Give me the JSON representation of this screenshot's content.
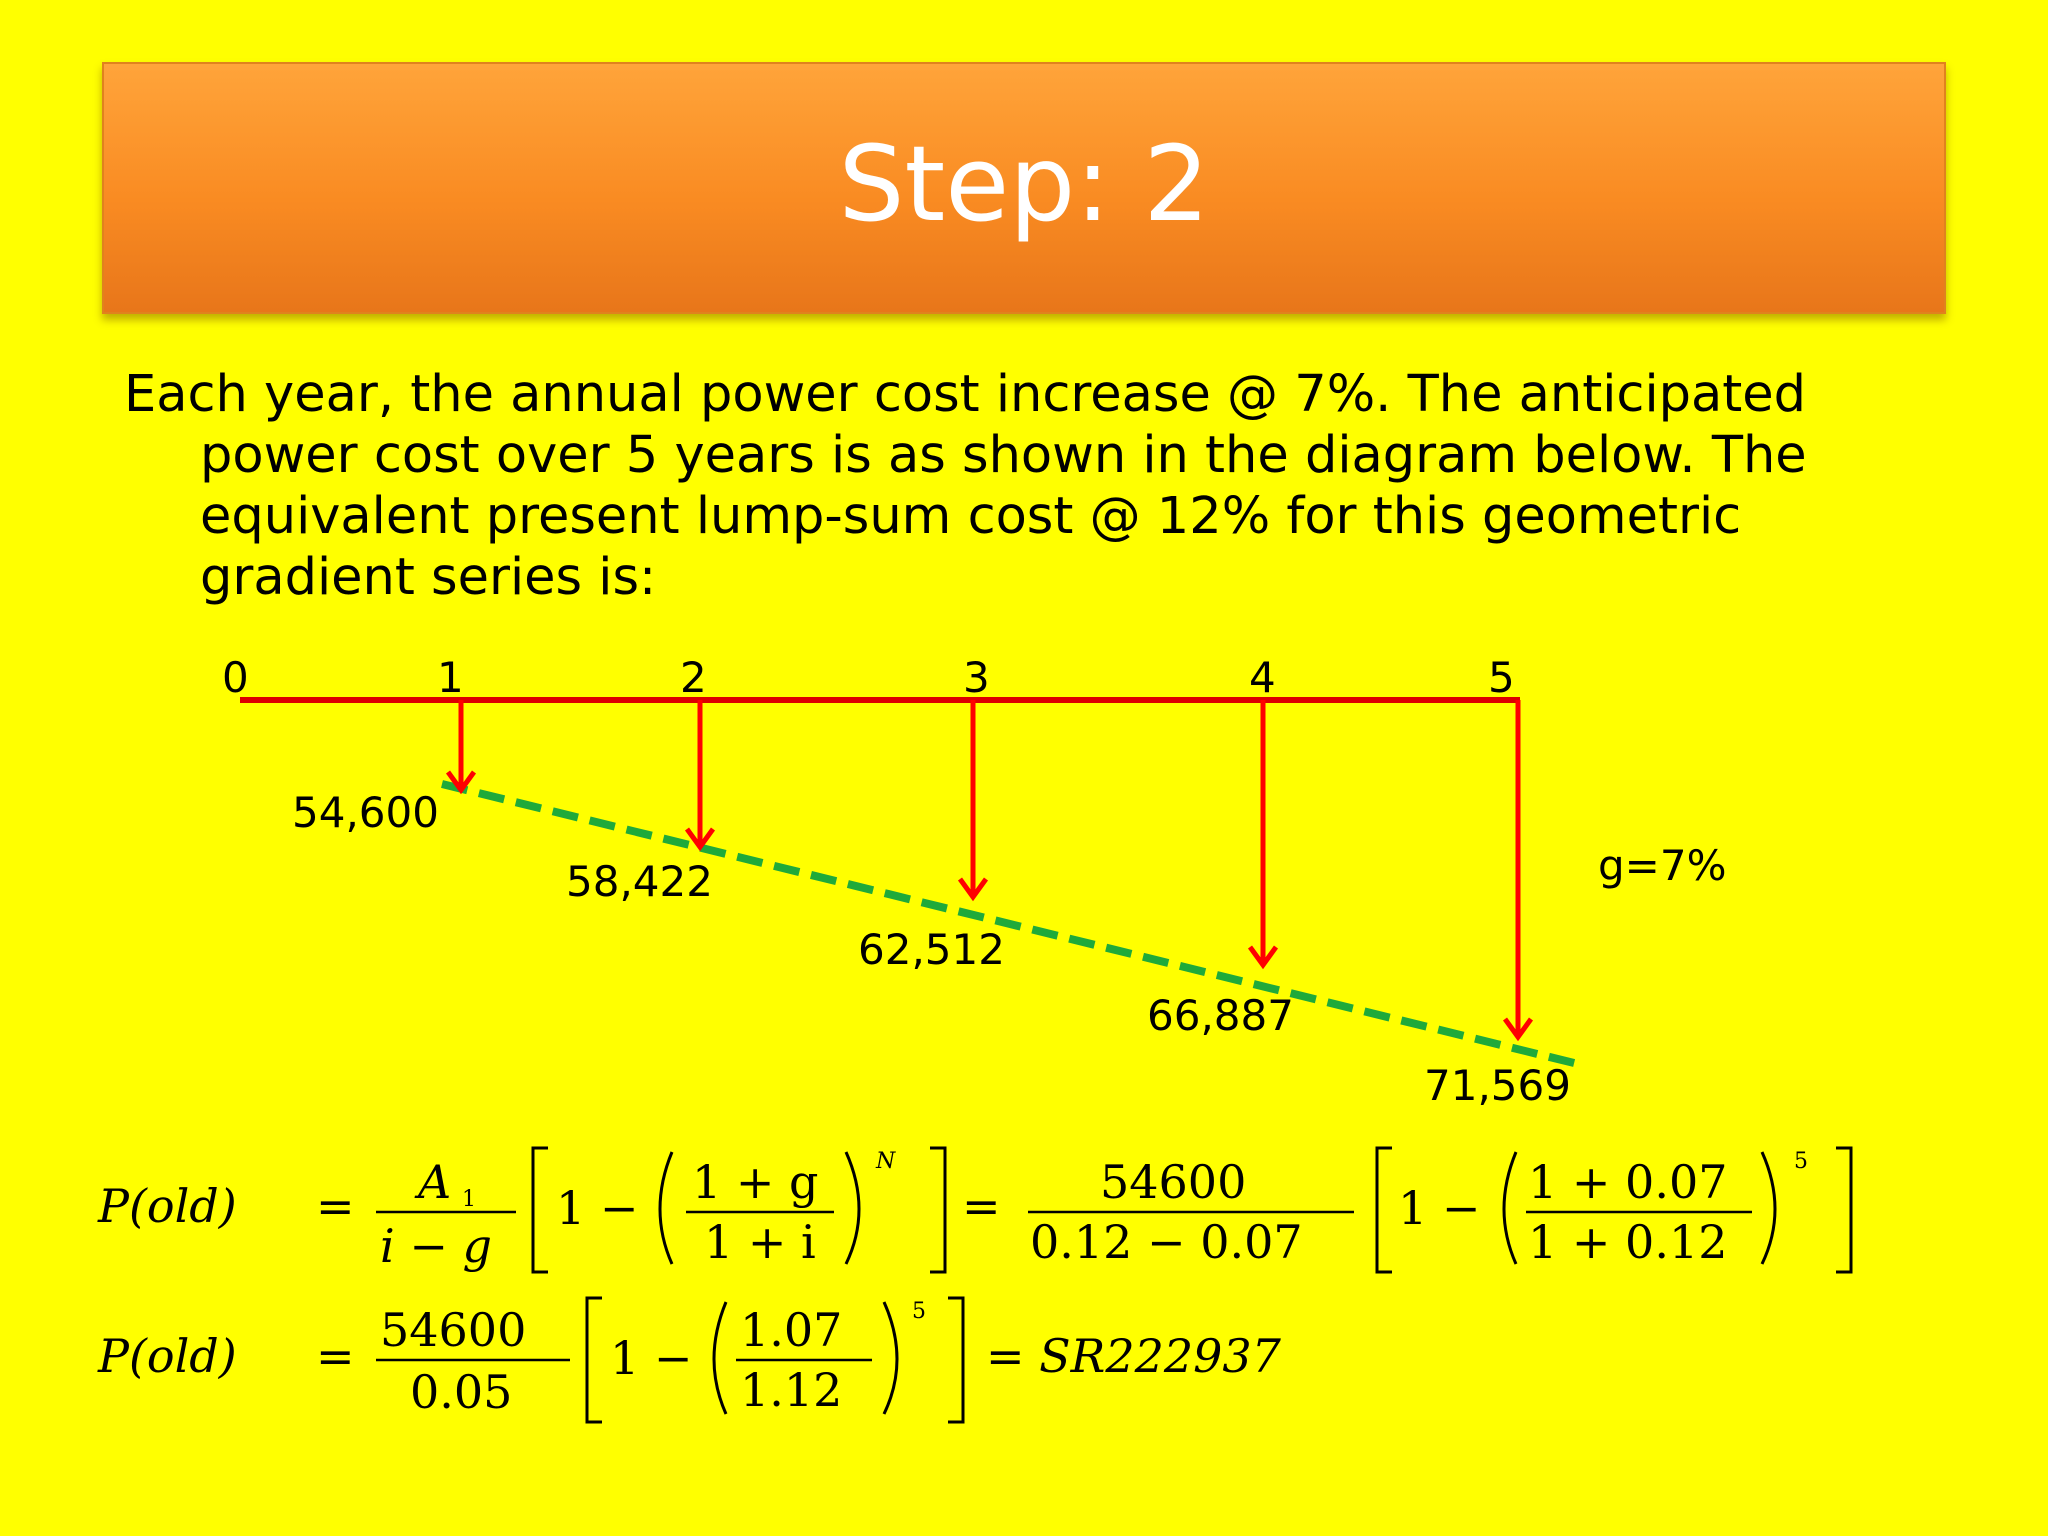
{
  "slide": {
    "title": "Step: 2",
    "paragraph": "Each year, the annual power cost increase @ 7%. The anticipated power cost over 5 years is as shown in the diagram below. The equivalent present lump-sum cost @ 12% for this geometric gradient series is:"
  },
  "cashflow": {
    "periods": [
      "0",
      "1",
      "2",
      "3",
      "4",
      "5"
    ],
    "amounts": [
      "54,600",
      "58,422",
      "62,512",
      "66,887",
      "71,569"
    ],
    "growth_label": "g=7%",
    "colors": {
      "timeline": "#dd0000",
      "arrows": "#ff0000",
      "gradient_line": "#1faa3a"
    }
  },
  "formulas": {
    "line1": {
      "lhs": "P(old)",
      "eq": "=",
      "num": "A",
      "num_sub": "1",
      "den": "i − g",
      "one_minus": "1 −",
      "inner_num": "1 + g",
      "inner_den": "1 + i",
      "exp": "N",
      "num2": "54600",
      "den2": "0.12 − 0.07",
      "inner_num2": "1 + 0.07",
      "inner_den2": "1 + 0.12",
      "exp2": "5"
    },
    "line2": {
      "lhs": "P(old)",
      "eq": "=",
      "num": "54600",
      "den": "0.05",
      "one_minus": "1 −",
      "inner_num": "1.07",
      "inner_den": "1.12",
      "exp": "5",
      "result": "= SR222937"
    }
  }
}
